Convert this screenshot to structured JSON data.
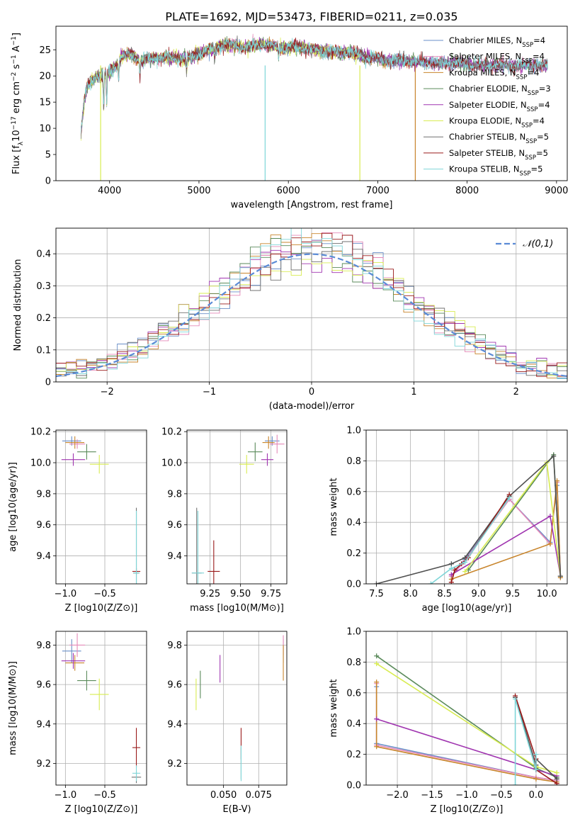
{
  "title": "PLATE=1692, MJD=53473, FIBERID=0211, z=0.035",
  "series_colors": [
    "#6a8fc8",
    "#e589b8",
    "#c8852c",
    "#5a8a5a",
    "#a035b0",
    "#d8ec52",
    "#707070",
    "#9a1b1b",
    "#7fd6d8"
  ],
  "chart_data": [
    {
      "id": "spectrum",
      "type": "line",
      "xlabel": "wavelength [Angstrom, rest frame]",
      "ylabel": "Flux [f_λ 10^-17 erg cm^-2 s^-1 A^-1]",
      "xlim": [
        3400,
        9120
      ],
      "ylim": [
        0,
        29.5
      ],
      "xticks": [
        4000,
        5000,
        6000,
        7000,
        8000,
        9000
      ],
      "yticks": [
        0,
        5,
        10,
        15,
        20,
        25
      ],
      "legend_position": "top-right",
      "series": [
        {
          "name": "Chabrier MILES, N_SSP=4",
          "color": "#6a8fc8"
        },
        {
          "name": "Salpeter MILES, N_SSP=4",
          "color": "#e589b8"
        },
        {
          "name": "Kroupa MILES, N_SSP=4",
          "color": "#c8852c"
        },
        {
          "name": "Chabrier ELODIE, N_SSP=3",
          "color": "#5a8a5a"
        },
        {
          "name": "Salpeter ELODIE, N_SSP=4",
          "color": "#a035b0"
        },
        {
          "name": "Kroupa ELODIE, N_SSP=4",
          "color": "#d8ec52"
        },
        {
          "name": "Chabrier STELIB, N_SSP=5",
          "color": "#707070"
        },
        {
          "name": "Salpeter STELIB, N_SSP=5",
          "color": "#9a1b1b"
        },
        {
          "name": "Kroupa STELIB, N_SSP=5",
          "color": "#7fd6d8"
        }
      ],
      "continuum": {
        "x": [
          3680,
          3750,
          3850,
          3950,
          4050,
          4150,
          4250,
          4350,
          4500,
          4700,
          4900,
          5100,
          5300,
          5500,
          5700,
          5900,
          6100,
          6300,
          6500,
          6700,
          6900,
          7100,
          7300,
          7500,
          7700,
          7900,
          8100,
          8300,
          8500,
          8700,
          8900
        ],
        "y": [
          12.5,
          18,
          20,
          20.5,
          21.5,
          24,
          24,
          23,
          23.5,
          23.5,
          23.5,
          25,
          26,
          25.5,
          26,
          25.5,
          25.5,
          25,
          24.5,
          24.5,
          23.5,
          23,
          23,
          22.5,
          22.5,
          22.5,
          22,
          22,
          22,
          22,
          22
        ]
      }
    },
    {
      "id": "residuals",
      "type": "line",
      "xlabel": "(data-model)/error",
      "ylabel": "Normed distribution",
      "xlim": [
        -2.5,
        2.5
      ],
      "ylim": [
        0,
        0.48
      ],
      "xticks": [
        -2,
        -1,
        0,
        1,
        2
      ],
      "yticks": [
        0,
        0.1,
        0.2,
        0.3,
        0.4
      ],
      "legend_position": "top-right",
      "normal_label": "𝒩(0,1)",
      "normal_color": "#5b8bd6",
      "hist_bins": 50
    },
    {
      "id": "age-vs-Z",
      "type": "scatter",
      "xlabel": "Z [log10(Z/Z⊙)]",
      "ylabel": "age [log10(age/yr)]",
      "xlim": [
        -1.12,
        0.03
      ],
      "ylim": [
        9.22,
        10.21
      ],
      "xticks": [
        -1.0,
        -0.5
      ],
      "yticks": [
        9.4,
        9.6,
        9.8,
        10.0,
        10.2
      ],
      "points": [
        {
          "x": -0.92,
          "y": 10.14,
          "xe": 0.12,
          "ye": 0.03,
          "c": "#6a8fc8"
        },
        {
          "x": -0.85,
          "y": 10.12,
          "xe": 0.1,
          "ye": 0.03,
          "c": "#e589b8"
        },
        {
          "x": -0.88,
          "y": 10.13,
          "xe": 0.12,
          "ye": 0.04,
          "c": "#c8852c"
        },
        {
          "x": -0.73,
          "y": 10.07,
          "xe": 0.12,
          "ye": 0.05,
          "c": "#5a8a5a"
        },
        {
          "x": -0.9,
          "y": 10.02,
          "xe": 0.15,
          "ye": 0.04,
          "c": "#a035b0"
        },
        {
          "x": -0.57,
          "y": 9.99,
          "xe": 0.12,
          "ye": 0.06,
          "c": "#d8ec52"
        },
        {
          "x": -0.1,
          "y": 9.29,
          "xe": 0.04,
          "ye": 0.42,
          "c": "#707070"
        },
        {
          "x": -0.1,
          "y": 9.3,
          "xe": 0.05,
          "ye": 0.02,
          "c": "#9a1b1b"
        },
        {
          "x": -0.1,
          "y": 9.29,
          "xe": 0.04,
          "ye": 0.4,
          "c": "#7fd6d8"
        }
      ]
    },
    {
      "id": "age-vs-mass",
      "type": "scatter",
      "xlabel": "mass [log10(M/M⊙)]",
      "ylabel": "",
      "xlim": [
        9.06,
        9.88
      ],
      "ylim": [
        9.22,
        10.21
      ],
      "xticks": [
        9.25,
        9.5,
        9.75
      ],
      "yticks": [
        9.4,
        9.6,
        9.8,
        10.0,
        10.2
      ],
      "points": [
        {
          "x": 9.76,
          "y": 10.14,
          "xe": 0.06,
          "ye": 0.03,
          "c": "#6a8fc8"
        },
        {
          "x": 9.8,
          "y": 10.12,
          "xe": 0.06,
          "ye": 0.06,
          "c": "#e589b8"
        },
        {
          "x": 9.73,
          "y": 10.13,
          "xe": 0.05,
          "ye": 0.04,
          "c": "#c8852c"
        },
        {
          "x": 9.62,
          "y": 10.07,
          "xe": 0.06,
          "ye": 0.06,
          "c": "#5a8a5a"
        },
        {
          "x": 9.72,
          "y": 10.02,
          "xe": 0.05,
          "ye": 0.04,
          "c": "#a035b0"
        },
        {
          "x": 9.55,
          "y": 9.99,
          "xe": 0.06,
          "ye": 0.06,
          "c": "#d8ec52"
        },
        {
          "x": 9.14,
          "y": 9.29,
          "xe": 0.04,
          "ye": 0.42,
          "c": "#707070"
        },
        {
          "x": 9.28,
          "y": 9.3,
          "xe": 0.05,
          "ye": 0.2,
          "c": "#9a1b1b"
        },
        {
          "x": 9.15,
          "y": 9.29,
          "xe": 0.05,
          "ye": 0.4,
          "c": "#7fd6d8"
        }
      ]
    },
    {
      "id": "massweight-vs-age",
      "type": "line",
      "xlabel": "age [log10(age/yr)]",
      "ylabel": "mass weight",
      "xlim": [
        7.35,
        10.3
      ],
      "ylim": [
        0,
        1.0
      ],
      "xticks": [
        7.5,
        8.0,
        8.5,
        9.0,
        9.5,
        10.0
      ],
      "yticks": [
        0,
        0.2,
        0.4,
        0.6,
        0.8,
        1.0
      ],
      "series": [
        {
          "c": "#6a8fc8",
          "x": [
            8.6,
            8.8,
            9.45,
            10.05,
            10.15,
            10.2
          ],
          "y": [
            0.05,
            0.16,
            0.55,
            0.27,
            0.64,
            0.05
          ]
        },
        {
          "c": "#e589b8",
          "x": [
            8.6,
            8.8,
            9.45,
            10.05,
            10.15,
            10.2
          ],
          "y": [
            0.05,
            0.15,
            0.55,
            0.26,
            0.66,
            0.05
          ]
        },
        {
          "c": "#c8852c",
          "x": [
            8.6,
            10.05,
            10.15,
            10.2
          ],
          "y": [
            0.03,
            0.26,
            0.67,
            0.04
          ]
        },
        {
          "c": "#5a8a5a",
          "x": [
            8.85,
            10.1,
            10.2
          ],
          "y": [
            0.09,
            0.84,
            0.05
          ]
        },
        {
          "c": "#a035b0",
          "x": [
            8.6,
            10.05,
            10.2
          ],
          "y": [
            0.06,
            0.44,
            0.05
          ]
        },
        {
          "c": "#d8ec52",
          "x": [
            8.8,
            10.0,
            10.2
          ],
          "y": [
            0.08,
            0.79,
            0.05
          ]
        },
        {
          "c": "#505050",
          "x": [
            7.5,
            8.6,
            8.8,
            9.45,
            10.1,
            10.2
          ],
          "y": [
            0.0,
            0.13,
            0.17,
            0.57,
            0.83,
            0.05
          ]
        },
        {
          "c": "#9a1b1b",
          "x": [
            8.6,
            8.65,
            8.75,
            8.85,
            9.45
          ],
          "y": [
            0.01,
            0.09,
            0.13,
            0.17,
            0.58
          ]
        },
        {
          "c": "#7fd6d8",
          "x": [
            8.3,
            8.6,
            8.8,
            9.45
          ],
          "y": [
            0.0,
            0.1,
            0.14,
            0.56
          ]
        }
      ]
    },
    {
      "id": "mass-vs-Z",
      "type": "scatter",
      "xlabel": "Z [log10(Z/Z⊙)]",
      "ylabel": "mass [log10(M/M⊙)]",
      "xlim": [
        -1.12,
        0.03
      ],
      "ylim": [
        9.09,
        9.87
      ],
      "xticks": [
        -1.0,
        -0.5
      ],
      "yticks": [
        9.2,
        9.4,
        9.6,
        9.8
      ],
      "points": [
        {
          "x": -0.92,
          "y": 9.77,
          "xe": 0.12,
          "ye": 0.06,
          "c": "#6a8fc8"
        },
        {
          "x": -0.85,
          "y": 9.8,
          "xe": 0.1,
          "ye": 0.06,
          "c": "#e589b8"
        },
        {
          "x": -0.88,
          "y": 9.71,
          "xe": 0.12,
          "ye": 0.04,
          "c": "#c8852c"
        },
        {
          "x": -0.73,
          "y": 9.62,
          "xe": 0.12,
          "ye": 0.05,
          "c": "#5a8a5a"
        },
        {
          "x": -0.9,
          "y": 9.72,
          "xe": 0.15,
          "ye": 0.04,
          "c": "#a035b0"
        },
        {
          "x": -0.57,
          "y": 9.55,
          "xe": 0.12,
          "ye": 0.08,
          "c": "#d8ec52"
        },
        {
          "x": -0.1,
          "y": 9.13,
          "xe": 0.06,
          "ye": 0.03,
          "c": "#707070"
        },
        {
          "x": -0.1,
          "y": 9.28,
          "xe": 0.05,
          "ye": 0.1,
          "c": "#9a1b1b"
        },
        {
          "x": -0.1,
          "y": 9.15,
          "xe": 0.05,
          "ye": 0.04,
          "c": "#7fd6d8"
        }
      ]
    },
    {
      "id": "mass-vs-EBV",
      "type": "scatter",
      "xlabel": "E(B-V)",
      "ylabel": "",
      "xlim": [
        0.024,
        0.095
      ],
      "ylim": [
        9.09,
        9.87
      ],
      "xticks": [
        0.05,
        0.075
      ],
      "xtick_labels": [
        "0.050",
        "0.075"
      ],
      "yticks": [
        9.2,
        9.4,
        9.6,
        9.8
      ],
      "points": [
        {
          "x": 0.0925,
          "y": 9.77,
          "xe": 0,
          "ye": 0.06,
          "c": "#6a8fc8"
        },
        {
          "x": 0.0925,
          "y": 9.8,
          "xe": 0,
          "ye": 0.05,
          "c": "#e589b8"
        },
        {
          "x": 0.0925,
          "y": 9.71,
          "xe": 0,
          "ye": 0.09,
          "c": "#c8852c"
        },
        {
          "x": 0.0335,
          "y": 9.6,
          "xe": 0,
          "ye": 0.07,
          "c": "#5a8a5a"
        },
        {
          "x": 0.0475,
          "y": 9.68,
          "xe": 0,
          "ye": 0.07,
          "c": "#a035b0"
        },
        {
          "x": 0.0305,
          "y": 9.55,
          "xe": 0,
          "ye": 0.08,
          "c": "#d8ec52"
        },
        {
          "x": 0.0625,
          "y": 9.2,
          "xe": 0,
          "ye": 0.08,
          "c": "#707070"
        },
        {
          "x": 0.0625,
          "y": 9.3,
          "xe": 0,
          "ye": 0.08,
          "c": "#9a1b1b"
        },
        {
          "x": 0.0625,
          "y": 9.2,
          "xe": 0,
          "ye": 0.09,
          "c": "#7fd6d8"
        }
      ]
    },
    {
      "id": "massweight-vs-Z",
      "type": "line",
      "xlabel": "Z [log10(Z/Z⊙)]",
      "ylabel": "mass weight",
      "xlim": [
        -2.45,
        0.45
      ],
      "ylim": [
        0,
        1.0
      ],
      "xticks": [
        -2.0,
        -1.5,
        -1.0,
        -0.5,
        0.0
      ],
      "yticks": [
        0,
        0.2,
        0.4,
        0.6,
        0.8,
        1.0
      ],
      "series": [
        {
          "c": "#6a8fc8",
          "x": [
            -2.3,
            -2.3,
            0.0,
            0.3
          ],
          "y": [
            0.64,
            0.27,
            0.05,
            0.03
          ]
        },
        {
          "c": "#e589b8",
          "x": [
            -2.3,
            -2.3,
            0.0,
            0.3
          ],
          "y": [
            0.66,
            0.26,
            0.05,
            0.03
          ]
        },
        {
          "c": "#c8852c",
          "x": [
            -2.3,
            -2.3,
            0.0,
            0.3
          ],
          "y": [
            0.67,
            0.25,
            0.04,
            0.02
          ]
        },
        {
          "c": "#5a8a5a",
          "x": [
            -2.3,
            0.0,
            0.3
          ],
          "y": [
            0.84,
            0.11,
            0.05
          ]
        },
        {
          "c": "#a035b0",
          "x": [
            -2.3,
            0.0,
            0.3
          ],
          "y": [
            0.43,
            0.1,
            0.06
          ]
        },
        {
          "c": "#d8ec52",
          "x": [
            -2.3,
            0.0,
            0.3
          ],
          "y": [
            0.79,
            0.12,
            0.08
          ]
        },
        {
          "c": "#505050",
          "x": [
            -0.3,
            0.0,
            0.0,
            0.3
          ],
          "y": [
            0.57,
            0.13,
            0.17,
            0.04
          ]
        },
        {
          "c": "#9a1b1b",
          "x": [
            -0.3,
            0.0,
            0.0,
            0.3
          ],
          "y": [
            0.58,
            0.17,
            0.1,
            0.01
          ]
        },
        {
          "c": "#7fd6d8",
          "x": [
            -0.3,
            -0.3,
            0.0,
            0.0
          ],
          "y": [
            0.0,
            0.56,
            0.1,
            0.2
          ]
        }
      ]
    }
  ]
}
